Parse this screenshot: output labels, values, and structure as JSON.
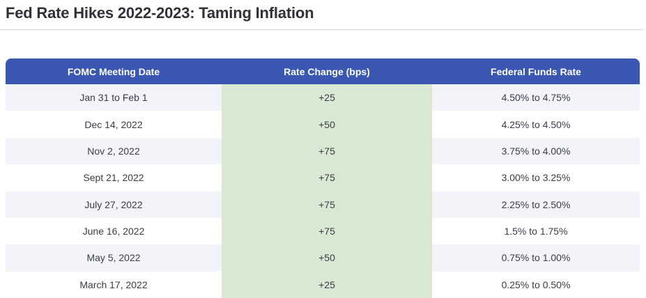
{
  "chart_data": {
    "type": "table",
    "title": "Fed Rate Hikes 2022-2023: Taming Inflation",
    "columns": [
      "FOMC Meeting Date",
      "Rate Change (bps)",
      "Federal Funds Rate"
    ],
    "rows": [
      {
        "date": "Jan 31 to Feb 1",
        "change": "+25",
        "funds_rate": "4.50% to 4.75%"
      },
      {
        "date": "Dec 14, 2022",
        "change": "+50",
        "funds_rate": "4.25% to 4.50%"
      },
      {
        "date": "Nov 2, 2022",
        "change": "+75",
        "funds_rate": "3.75% to 4.00%"
      },
      {
        "date": "Sept 21, 2022",
        "change": "+75",
        "funds_rate": "3.00% to 3.25%"
      },
      {
        "date": "July 27, 2022",
        "change": "+75",
        "funds_rate": "2.25% to 2.50%"
      },
      {
        "date": "June 16, 2022",
        "change": "+75",
        "funds_rate": "1.5% to 1.75%"
      },
      {
        "date": "May 5, 2022",
        "change": "+50",
        "funds_rate": "0.75% to 1.00%"
      },
      {
        "date": "March 17, 2022",
        "change": "+25",
        "funds_rate": "0.25% to 0.50%"
      }
    ],
    "rate_change_bps_values": [
      25,
      50,
      75,
      75,
      75,
      75,
      50,
      25
    ],
    "layout": {
      "header_position": "top",
      "row_striping": true,
      "highlighted_column": "Rate Change (bps)"
    }
  },
  "colors": {
    "header_bg": "#3A57B2",
    "header_text": "#FFFFFF",
    "stripe_bg": "#F2F4FA",
    "green_col_bg": "#D9E8D3",
    "title_text": "#2E3237",
    "cell_text": "#383D44",
    "divider": "#D8D8D8",
    "page_bg": "#FFFFFF"
  }
}
